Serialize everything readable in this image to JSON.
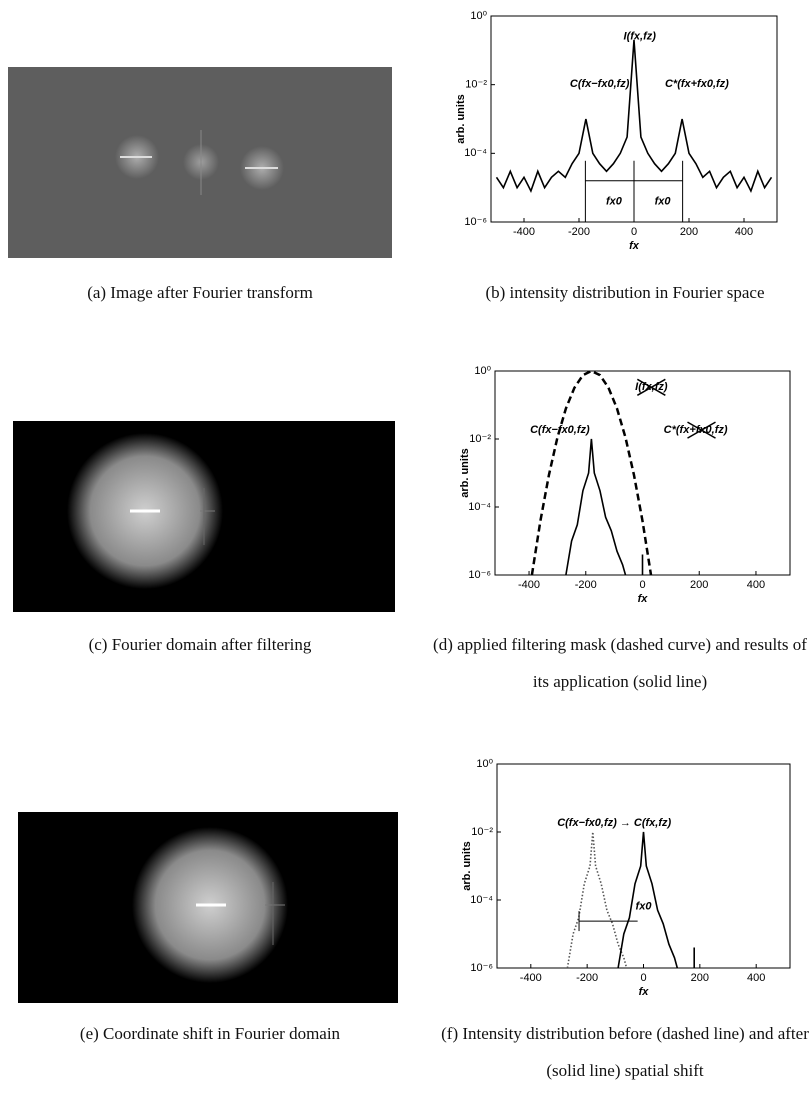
{
  "captions": [
    "(a) Image after Fourier transform",
    "(b) intensity distribution in Fourier space",
    "(c) Fourier domain after filtering",
    "(d) applied filtering mask (dashed curve) and results of its application (solid line)",
    "(e) Coordinate shift in Fourier domain",
    "(f) Intensity distribution before (dashed line) and after (solid line) spatial shift"
  ],
  "chart_data": [
    {
      "type": "line",
      "y_label": "arb. units",
      "x_label": "fx",
      "yscale": "log",
      "xlim": [
        -520,
        520
      ],
      "ylim": [
        1e-06,
        1
      ],
      "xticks": [
        -400,
        -200,
        0,
        200,
        400
      ],
      "yticks": [
        {
          "value": 1,
          "label": "10⁰"
        },
        {
          "value": 0.01,
          "label": "10⁻²"
        },
        {
          "value": 0.0001,
          "label": "10⁻⁴"
        },
        {
          "value": 1e-06,
          "label": "10⁻⁶"
        }
      ],
      "annotations": [
        "I(fx,fz)",
        "C(fx−fx0,fz)",
        "C*(fx+fx0,fz)",
        "fx0",
        "fx0"
      ],
      "series": [
        {
          "color": "#000000",
          "style": "solid",
          "x": [
            -500,
            -475,
            -450,
            -425,
            -400,
            -375,
            -350,
            -325,
            -300,
            -275,
            -250,
            -225,
            -200,
            -175,
            -150,
            -125,
            -100,
            -75,
            -50,
            -25,
            0,
            25,
            50,
            75,
            100,
            125,
            150,
            175,
            200,
            225,
            250,
            275,
            300,
            325,
            350,
            375,
            400,
            425,
            450,
            475,
            500
          ],
          "values": [
            2e-05,
            1e-05,
            3e-05,
            1e-05,
            2e-05,
            8e-06,
            3e-05,
            1e-05,
            2e-05,
            3e-05,
            2e-05,
            5e-05,
            0.0001,
            0.001,
            0.0001,
            5e-05,
            3e-05,
            5e-05,
            0.0001,
            0.0003,
            0.2,
            0.0003,
            0.0001,
            5e-05,
            3e-05,
            5e-05,
            0.0001,
            0.001,
            0.0001,
            5e-05,
            2e-05,
            3e-05,
            1e-05,
            2e-05,
            3e-05,
            1e-05,
            2e-05,
            8e-06,
            3e-05,
            1e-05,
            2e-05
          ]
        }
      ]
    },
    {
      "type": "line",
      "y_label": "arb. units",
      "x_label": "fx",
      "yscale": "log",
      "xlim": [
        -520,
        520
      ],
      "ylim": [
        1e-06,
        1
      ],
      "xticks": [
        -400,
        -200,
        0,
        200,
        400
      ],
      "yticks": [
        {
          "value": 1,
          "label": "10⁰"
        },
        {
          "value": 0.01,
          "label": "10⁻²"
        },
        {
          "value": 0.0001,
          "label": "10⁻⁴"
        },
        {
          "value": 1e-06,
          "label": "10⁻⁶"
        }
      ],
      "annotations": [
        "I(fx,fz)",
        "C(fx−fx0,fz)",
        "C*(fx+fx0,fz)"
      ],
      "series": [
        {
          "color": "#000000",
          "style": "dashed",
          "x": [
            -390,
            -360,
            -330,
            -300,
            -270,
            -240,
            -210,
            -180,
            -150,
            -120,
            -90,
            -60,
            -30,
            0,
            30
          ],
          "values": [
            1e-06,
            3.9e-05,
            0.00087,
            0.011,
            0.079,
            0.32,
            0.76,
            1,
            0.76,
            0.32,
            0.079,
            0.011,
            0.00087,
            3.9e-05,
            1e-06
          ]
        },
        {
          "color": "#000000",
          "style": "solid",
          "x": [
            -270,
            -250,
            -230,
            -210,
            -190,
            -180,
            -170,
            -150,
            -130,
            -110,
            -90,
            -70,
            -60
          ],
          "values": [
            1e-06,
            1e-05,
            3e-05,
            0.0003,
            0.001,
            0.01,
            0.001,
            0.0003,
            5e-05,
            2e-05,
            5e-06,
            2e-06,
            1e-06
          ]
        },
        {
          "color": "#000000",
          "style": "solid",
          "x": [
            0,
            0
          ],
          "values": [
            1e-06,
            4e-06
          ]
        }
      ]
    },
    {
      "type": "line",
      "y_label": "arb. units",
      "x_label": "fx",
      "yscale": "log",
      "xlim": [
        -520,
        520
      ],
      "ylim": [
        1e-06,
        1
      ],
      "xticks": [
        -400,
        -200,
        0,
        200,
        400
      ],
      "yticks": [
        {
          "value": 1,
          "label": "10⁰"
        },
        {
          "value": 0.01,
          "label": "10⁻²"
        },
        {
          "value": 0.0001,
          "label": "10⁻⁴"
        },
        {
          "value": 1e-06,
          "label": "10⁻⁶"
        }
      ],
      "annotations": [
        "C(fx−fx0,fz) → C(fx,fz)",
        "fx0"
      ],
      "series": [
        {
          "color": "#555555",
          "style": "dotted",
          "x": [
            -270,
            -250,
            -230,
            -210,
            -190,
            -180,
            -170,
            -150,
            -130,
            -110,
            -90,
            -70,
            -60
          ],
          "values": [
            1e-06,
            1e-05,
            3e-05,
            0.0003,
            0.001,
            0.01,
            0.001,
            0.0003,
            5e-05,
            2e-05,
            5e-06,
            2e-06,
            1e-06
          ]
        },
        {
          "color": "#000000",
          "style": "solid",
          "x": [
            -90,
            -70,
            -50,
            -30,
            -10,
            0,
            10,
            30,
            50,
            70,
            90,
            110,
            120
          ],
          "values": [
            1e-06,
            1e-05,
            3e-05,
            0.0003,
            0.001,
            0.01,
            0.001,
            0.0003,
            5e-05,
            2e-05,
            5e-06,
            2e-06,
            1e-06
          ]
        },
        {
          "color": "#000000",
          "style": "solid",
          "x": [
            180,
            180
          ],
          "values": [
            1e-06,
            4e-06
          ]
        }
      ]
    }
  ]
}
